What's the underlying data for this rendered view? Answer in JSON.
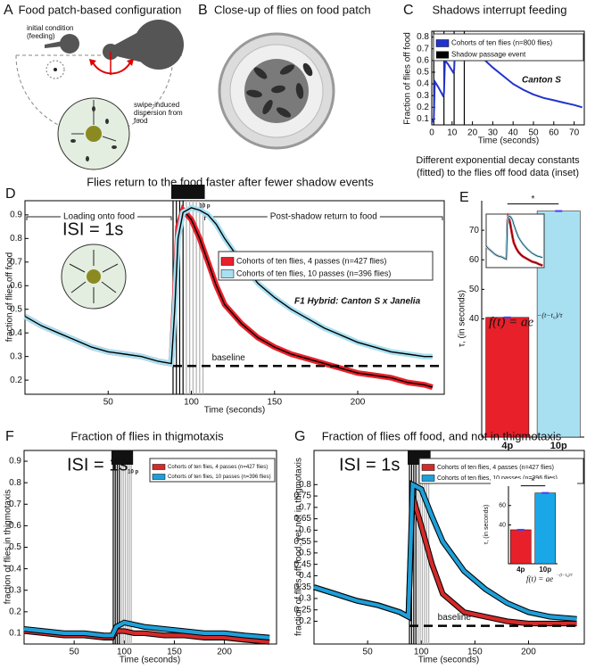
{
  "panels": {
    "A": {
      "label": "A",
      "title": "Food patch-based configuration",
      "notes": [
        [
          "initial condition",
          "(feeding)"
        ],
        [
          "swipe-induced",
          "dispersion from",
          "food"
        ]
      ]
    },
    "B": {
      "label": "B",
      "title": "Close-up of flies on food patch"
    }
  },
  "chart_data": [
    {
      "label": "C",
      "type": "line",
      "title": "Shadows interrupt feeding",
      "xlabel": "Time (seconds)",
      "ylabel": "Fraction of flies off food",
      "x": [
        0,
        1,
        1.5,
        3,
        5.5,
        6,
        6.5,
        8,
        10.5,
        11,
        11.5,
        13,
        15.5,
        16,
        16.5,
        20,
        25,
        30,
        35,
        40,
        45,
        50,
        55,
        60,
        65,
        70,
        74
      ],
      "series": [
        {
          "name": "Cohorts of ten flies (n=800 flies)",
          "color": "#2233cc",
          "values": [
            0.07,
            0.1,
            0.42,
            0.38,
            0.3,
            0.32,
            0.6,
            0.57,
            0.5,
            0.52,
            0.72,
            0.7,
            0.64,
            0.66,
            0.8,
            0.74,
            0.62,
            0.54,
            0.47,
            0.4,
            0.35,
            0.31,
            0.28,
            0.26,
            0.24,
            0.22,
            0.2
          ]
        }
      ],
      "event_legend": "Shadow passage event",
      "shadow_events": [
        {
          "color": "#000000",
          "x": [
            1,
            6,
            11,
            16
          ]
        }
      ],
      "annotations": [
        "Canton S"
      ],
      "xlim": [
        0,
        75
      ],
      "ylim": [
        0.05,
        0.85
      ],
      "xticks": [
        0,
        10,
        20,
        30,
        40,
        50,
        60,
        70
      ],
      "yticks": [
        0.1,
        0.2,
        0.3,
        0.4,
        0.5,
        0.6,
        0.7,
        0.8
      ]
    },
    {
      "label": "D",
      "type": "line",
      "title": "Flies return to the food faster after fewer shadow events",
      "xlabel": "Time (seconds)",
      "ylabel": "fraction of flies off food",
      "x": [
        0,
        10,
        20,
        30,
        40,
        50,
        60,
        70,
        80,
        88,
        90,
        92,
        95,
        100,
        105,
        110,
        115,
        120,
        130,
        140,
        150,
        160,
        170,
        180,
        190,
        200,
        210,
        220,
        230,
        240,
        245
      ],
      "series": [
        {
          "name": "Cohorts of ten flies, 4 passes (n=427 flies)",
          "color": "#e8202a",
          "values": [
            0.47,
            0.43,
            0.4,
            0.37,
            0.34,
            0.32,
            0.31,
            0.3,
            0.28,
            0.27,
            0.55,
            0.85,
            0.92,
            0.88,
            0.8,
            0.7,
            0.6,
            0.52,
            0.44,
            0.38,
            0.34,
            0.31,
            0.29,
            0.27,
            0.25,
            0.23,
            0.22,
            0.21,
            0.19,
            0.18,
            0.17
          ]
        },
        {
          "name": "Cohorts of ten flies, 10 passes (n=396 flies)",
          "color": "#a8e0f2",
          "values": [
            0.47,
            0.43,
            0.4,
            0.37,
            0.34,
            0.32,
            0.31,
            0.3,
            0.28,
            0.27,
            0.5,
            0.8,
            0.91,
            0.93,
            0.92,
            0.9,
            0.86,
            0.8,
            0.7,
            0.61,
            0.55,
            0.5,
            0.46,
            0.42,
            0.39,
            0.36,
            0.34,
            0.32,
            0.31,
            0.3,
            0.3
          ]
        }
      ],
      "shadow_events": [
        {
          "color": "#000000",
          "x": [
            89,
            91,
            93,
            95
          ]
        },
        {
          "color": "#b0b0b0",
          "x": [
            97,
            99,
            101,
            103,
            105,
            107
          ]
        }
      ],
      "shadow_box": "10 p",
      "brackets": [
        "Loading onto food",
        "Post-shadow return to food"
      ],
      "baseline": 0.26,
      "baseline_label": "baseline",
      "annotations": [
        "ISI = 1s",
        "F1 Hybrid: Canton S x Janelia"
      ],
      "xlim": [
        0,
        252
      ],
      "ylim": [
        0.14,
        0.96
      ],
      "xticks": [
        50,
        100,
        150,
        200
      ],
      "yticks": [
        0.2,
        0.3,
        0.4,
        0.5,
        0.6,
        0.7,
        0.8,
        0.9
      ]
    },
    {
      "label": "E",
      "type": "bar",
      "title": [
        "Different exponential decay constants",
        "(fitted) to the flies off food data (inset)"
      ],
      "ylabel": "τ, (in seconds)",
      "categories": [
        "4p",
        "10p"
      ],
      "values": [
        40.5,
        76.5
      ],
      "colors": [
        "#e8202a",
        "#a8e0f2"
      ],
      "significance": "*",
      "formula": "f(t) = ae",
      "exponent": "−(t−t₀)/τ",
      "ylim": [
        0,
        80
      ],
      "yticks": [
        40,
        50,
        60,
        70
      ]
    },
    {
      "label": "F",
      "type": "line",
      "title": "Fraction of flies in thigmotaxis",
      "xlabel": "Time (seconds)",
      "ylabel": "fraction of flies in thigmotaxis",
      "x": [
        0,
        20,
        40,
        60,
        80,
        88,
        92,
        100,
        110,
        120,
        140,
        160,
        180,
        200,
        220,
        245
      ],
      "series": [
        {
          "name": "Cohorts of ten flies, 4 passes (n=427 flies)",
          "color": "#d42a2a",
          "values": [
            0.11,
            0.1,
            0.09,
            0.09,
            0.08,
            0.08,
            0.11,
            0.11,
            0.1,
            0.1,
            0.09,
            0.09,
            0.08,
            0.08,
            0.07,
            0.06
          ]
        },
        {
          "name": "Cohorts of ten flies, 10 passes (n=396 flies)",
          "color": "#1f9fd8",
          "values": [
            0.12,
            0.11,
            0.1,
            0.1,
            0.09,
            0.09,
            0.13,
            0.15,
            0.14,
            0.13,
            0.12,
            0.11,
            0.1,
            0.1,
            0.09,
            0.08
          ]
        }
      ],
      "shadow_events": [
        {
          "color": "#000000",
          "x": [
            89,
            91,
            93,
            95
          ]
        },
        {
          "color": "#b0b0b0",
          "x": [
            97,
            99,
            101,
            103,
            105,
            107
          ]
        }
      ],
      "shadow_box": "10 p",
      "annotations": [
        "ISI = 1s"
      ],
      "xlim": [
        0,
        252
      ],
      "ylim": [
        0.05,
        0.95
      ],
      "xticks": [
        50,
        100,
        150,
        200
      ],
      "yticks": [
        0.1,
        0.2,
        0.3,
        0.4,
        0.5,
        0.6,
        0.7,
        0.8,
        0.9
      ]
    },
    {
      "label": "G",
      "type": "line",
      "title": "Fraction of flies off food, and not in thigmotaxis",
      "xlabel": "Time (seconds)",
      "ylabel": "fraction of flies off food, yet not in thigmotaxis",
      "x": [
        0,
        20,
        40,
        60,
        80,
        88,
        92,
        100,
        110,
        120,
        140,
        160,
        180,
        200,
        220,
        245
      ],
      "series": [
        {
          "name": "Cohorts of ten flies, 4 passes (n=427 flies)",
          "color": "#d42a2a",
          "values": [
            0.35,
            0.32,
            0.29,
            0.27,
            0.24,
            0.22,
            0.75,
            0.62,
            0.45,
            0.32,
            0.24,
            0.22,
            0.2,
            0.19,
            0.19,
            0.19
          ]
        },
        {
          "name": "Cohorts of ten flies, 10 passes (n=396 flies)",
          "color": "#1f9fd8",
          "values": [
            0.35,
            0.32,
            0.29,
            0.27,
            0.24,
            0.22,
            0.8,
            0.78,
            0.66,
            0.55,
            0.42,
            0.34,
            0.28,
            0.24,
            0.22,
            0.21
          ]
        }
      ],
      "shadow_events": [
        {
          "color": "#000000",
          "x": [
            89,
            91,
            93,
            95
          ]
        },
        {
          "color": "#b0b0b0",
          "x": [
            97,
            99,
            101,
            103,
            105,
            107
          ]
        }
      ],
      "shadow_box": "10 p",
      "baseline": 0.18,
      "baseline_label": "baseline",
      "annotations": [
        "ISI = 1s"
      ],
      "xlim": [
        0,
        252
      ],
      "ylim": [
        0.1,
        0.95
      ],
      "xticks": [
        50,
        100,
        150,
        200
      ],
      "yticks": [
        0.2,
        0.25,
        0.3,
        0.35,
        0.4,
        0.45,
        0.5,
        0.55,
        0.6,
        0.65,
        0.7,
        0.75,
        0.8
      ]
    },
    {
      "type": "bar",
      "ylabel": "τ, (in seconds)",
      "categories": [
        "4p",
        "10p"
      ],
      "values": [
        35,
        73
      ],
      "colors": [
        "#e8202a",
        "#1aa7e8"
      ],
      "significance": "*",
      "formula": "f(t) = ae",
      "exponent": "−(t−t₀)/τ",
      "ylim": [
        0,
        80
      ],
      "yticks": [
        40,
        60
      ]
    }
  ]
}
